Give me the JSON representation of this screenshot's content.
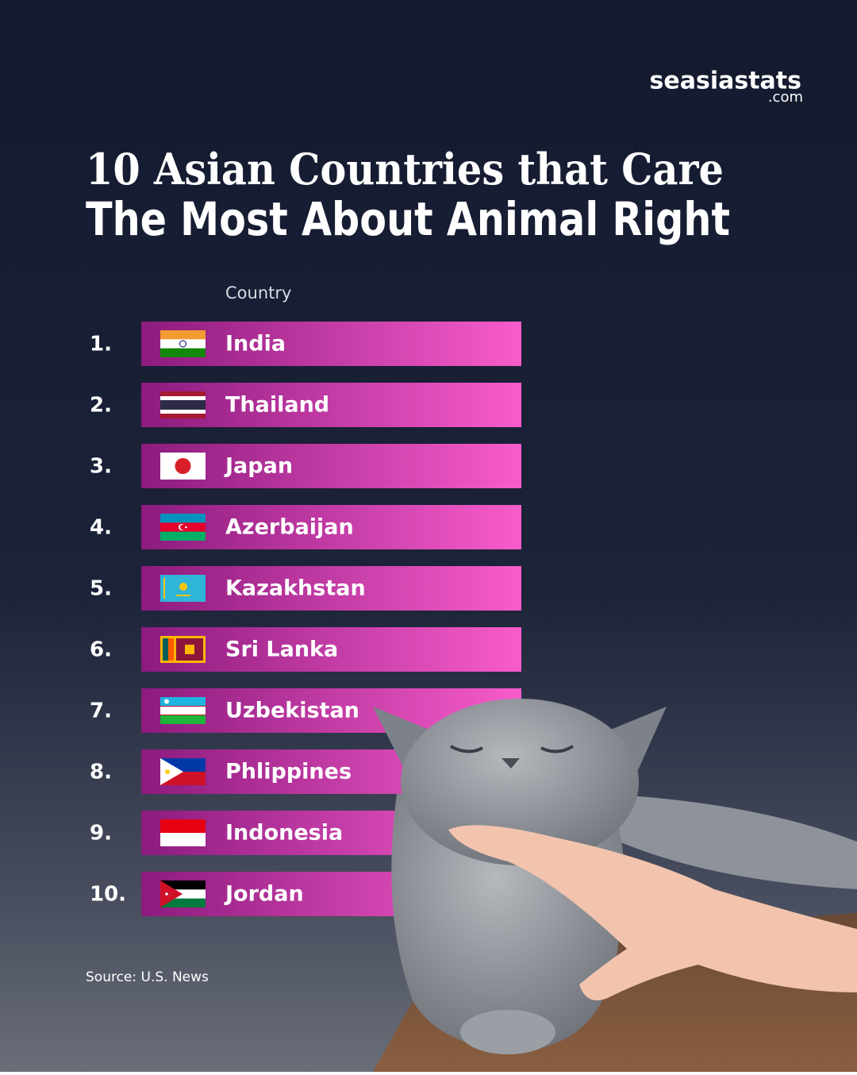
{
  "brand": {
    "name": "seasiastats",
    "domain": ".com"
  },
  "title": {
    "line1": "10 Asian Countries that Care",
    "line2": "The Most About Animal Right"
  },
  "column_header": "Country",
  "rows": [
    {
      "rank": "1.",
      "country": "India"
    },
    {
      "rank": "2.",
      "country": "Thailand"
    },
    {
      "rank": "3.",
      "country": "Japan"
    },
    {
      "rank": "4.",
      "country": "Azerbaijan"
    },
    {
      "rank": "5.",
      "country": "Kazakhstan"
    },
    {
      "rank": "6.",
      "country": "Sri Lanka"
    },
    {
      "rank": "7.",
      "country": "Uzbekistan"
    },
    {
      "rank": "8.",
      "country": "Phlippines"
    },
    {
      "rank": "9.",
      "country": "Indonesia"
    },
    {
      "rank": "10.",
      "country": "Jordan"
    }
  ],
  "source": "Source: U.S. News"
}
